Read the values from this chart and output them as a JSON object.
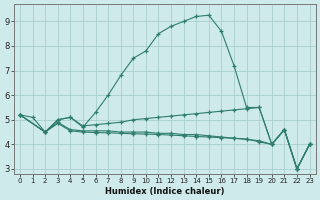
{
  "xlabel": "Humidex (Indice chaleur)",
  "background_color": "#ceeaea",
  "grid_color": "#aacece",
  "line_color": "#2e7d6e",
  "xlim": [
    -0.5,
    23.5
  ],
  "ylim": [
    2.8,
    9.7
  ],
  "yticks": [
    3,
    4,
    5,
    6,
    7,
    8,
    9
  ],
  "xticks": [
    0,
    1,
    2,
    3,
    4,
    5,
    6,
    7,
    8,
    9,
    10,
    11,
    12,
    13,
    14,
    15,
    16,
    17,
    18,
    19,
    20,
    21,
    22,
    23
  ],
  "series": [
    {
      "x": [
        0,
        1,
        2,
        3,
        4,
        5,
        6,
        7,
        8,
        9,
        10,
        11,
        12,
        13,
        14,
        15,
        16,
        17,
        18,
        19,
        20,
        21,
        22,
        23
      ],
      "y": [
        5.2,
        5.1,
        4.5,
        5.0,
        5.1,
        4.7,
        5.3,
        6.0,
        6.8,
        7.5,
        7.8,
        8.5,
        8.8,
        9.0,
        9.2,
        9.25,
        8.6,
        7.2,
        5.5,
        5.5,
        4.0,
        4.6,
        3.0,
        4.0
      ]
    },
    {
      "x": [
        0,
        2,
        3,
        4,
        5,
        6,
        7,
        8,
        9,
        10,
        11,
        12,
        13,
        14,
        15,
        16,
        17,
        18,
        19,
        20,
        21,
        22,
        23
      ],
      "y": [
        5.2,
        4.5,
        5.0,
        5.1,
        4.75,
        4.8,
        4.85,
        4.9,
        5.0,
        5.05,
        5.1,
        5.15,
        5.2,
        5.25,
        5.3,
        5.35,
        5.4,
        5.45,
        5.5,
        4.0,
        4.6,
        3.0,
        4.0
      ]
    },
    {
      "x": [
        0,
        2,
        3,
        4,
        5,
        6,
        7,
        8,
        9,
        10,
        11,
        12,
        13,
        14,
        15,
        16,
        17,
        18,
        19,
        20,
        21,
        22,
        23
      ],
      "y": [
        5.2,
        4.5,
        4.9,
        4.6,
        4.55,
        4.55,
        4.55,
        4.5,
        4.5,
        4.5,
        4.45,
        4.45,
        4.4,
        4.4,
        4.35,
        4.3,
        4.25,
        4.2,
        4.15,
        4.0,
        4.6,
        3.0,
        4.0
      ]
    },
    {
      "x": [
        0,
        2,
        3,
        4,
        5,
        6,
        7,
        8,
        9,
        10,
        11,
        12,
        13,
        14,
        15,
        16,
        17,
        18,
        19,
        20,
        21,
        22,
        23
      ],
      "y": [
        5.2,
        4.5,
        4.85,
        4.55,
        4.5,
        4.48,
        4.47,
        4.45,
        4.43,
        4.42,
        4.4,
        4.38,
        4.35,
        4.32,
        4.3,
        4.27,
        4.25,
        4.22,
        4.1,
        4.0,
        4.6,
        3.0,
        4.0
      ]
    }
  ]
}
